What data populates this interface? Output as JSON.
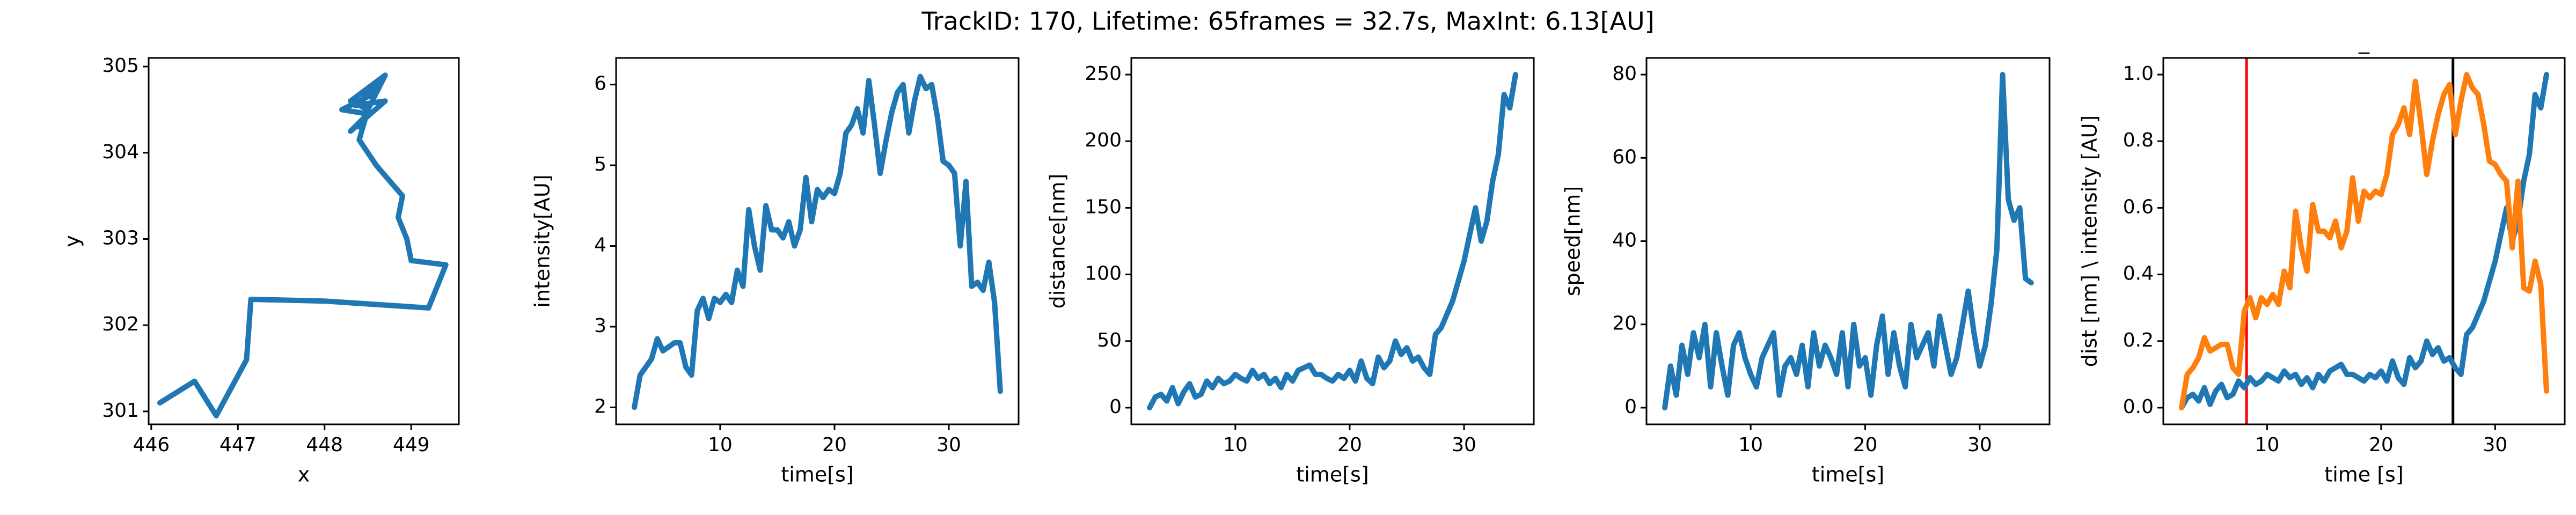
{
  "title": "TrackID: 170, Lifetime: 65frames = 32.7s, MaxInt: 6.13[AU]",
  "chart_data": [
    {
      "type": "line",
      "xlabel": "x",
      "ylabel": "y",
      "color": "#1f77b4",
      "x": [
        446.1,
        446.5,
        446.75,
        447.1,
        447.15,
        448.0,
        449.2,
        449.4,
        449.0,
        448.95,
        448.85,
        448.9,
        448.6,
        448.4,
        448.5,
        448.3,
        448.7,
        448.4,
        448.6,
        448.2,
        448.5,
        448.3,
        448.7,
        448.35,
        448.65
      ],
      "values": [
        301.1,
        301.35,
        300.95,
        301.6,
        302.3,
        302.28,
        302.2,
        302.7,
        302.75,
        303.0,
        303.25,
        303.5,
        303.85,
        304.15,
        304.5,
        304.6,
        304.9,
        304.3,
        304.7,
        304.5,
        304.45,
        304.25,
        304.6,
        304.55,
        304.8
      ],
      "xlim": [
        445.97,
        449.55
      ],
      "ylim": [
        300.85,
        305.1
      ],
      "xticks": [
        446,
        447,
        448,
        449
      ],
      "yticks": [
        301,
        302,
        303,
        304,
        305
      ]
    },
    {
      "type": "line",
      "xlabel": "time[s]",
      "ylabel": "intensity[AU]",
      "color": "#1f77b4",
      "x": [
        2.5,
        3,
        3.5,
        4,
        4.5,
        5,
        5.5,
        6,
        6.5,
        7,
        7.5,
        8,
        8.5,
        9,
        9.5,
        10,
        10.5,
        11,
        11.5,
        12,
        12.5,
        13,
        13.5,
        14,
        14.5,
        15,
        15.5,
        16,
        16.5,
        17,
        17.5,
        18,
        18.5,
        19,
        19.5,
        20,
        20.5,
        21,
        21.5,
        22,
        22.5,
        23,
        23.5,
        24,
        24.5,
        25,
        25.5,
        26,
        26.5,
        27,
        27.5,
        28,
        28.5,
        29,
        29.5,
        30,
        30.5,
        31,
        31.5,
        32,
        32.5,
        33,
        33.5,
        34,
        34.5
      ],
      "values": [
        2.0,
        2.4,
        2.5,
        2.6,
        2.85,
        2.7,
        2.75,
        2.8,
        2.8,
        2.5,
        2.4,
        3.2,
        3.35,
        3.1,
        3.35,
        3.3,
        3.4,
        3.3,
        3.7,
        3.5,
        4.45,
        4.0,
        3.7,
        4.5,
        4.2,
        4.2,
        4.1,
        4.3,
        4.0,
        4.2,
        4.85,
        4.3,
        4.7,
        4.6,
        4.7,
        4.65,
        4.9,
        5.4,
        5.5,
        5.7,
        5.4,
        6.05,
        5.5,
        4.9,
        5.3,
        5.65,
        5.9,
        6.0,
        5.4,
        5.8,
        6.1,
        5.95,
        6.0,
        5.6,
        5.05,
        5.0,
        4.9,
        4.0,
        4.8,
        3.5,
        3.55,
        3.45,
        3.8,
        3.3,
        2.2
      ],
      "xlim": [
        0.9,
        36.1
      ],
      "ylim": [
        1.79,
        6.33
      ],
      "xticks": [
        10,
        20,
        30
      ],
      "yticks": [
        2,
        3,
        4,
        5,
        6
      ]
    },
    {
      "type": "line",
      "xlabel": "time[s]",
      "ylabel": "distance[nm]",
      "color": "#1f77b4",
      "x": [
        2.5,
        3,
        3.5,
        4,
        4.5,
        5,
        5.5,
        6,
        6.5,
        7,
        7.5,
        8,
        8.5,
        9,
        9.5,
        10,
        10.5,
        11,
        11.5,
        12,
        12.5,
        13,
        13.5,
        14,
        14.5,
        15,
        15.5,
        16,
        16.5,
        17,
        17.5,
        18,
        18.5,
        19,
        19.5,
        20,
        20.5,
        21,
        21.5,
        22,
        22.5,
        23,
        23.5,
        24,
        24.5,
        25,
        25.5,
        26,
        26.5,
        27,
        27.5,
        28,
        28.5,
        29,
        29.5,
        30,
        30.5,
        31,
        31.5,
        32,
        32.5,
        33,
        33.5,
        34,
        34.5
      ],
      "values": [
        0,
        8,
        10,
        5,
        15,
        3,
        12,
        18,
        8,
        10,
        20,
        15,
        22,
        18,
        20,
        25,
        22,
        20,
        28,
        22,
        25,
        18,
        22,
        15,
        25,
        20,
        28,
        30,
        32,
        25,
        25,
        22,
        20,
        25,
        22,
        28,
        20,
        35,
        22,
        18,
        38,
        30,
        35,
        50,
        40,
        45,
        35,
        38,
        30,
        25,
        55,
        60,
        70,
        80,
        95,
        110,
        130,
        150,
        125,
        140,
        170,
        190,
        235,
        225,
        250
      ],
      "xlim": [
        0.9,
        36.1
      ],
      "ylim": [
        -12.5,
        262.5
      ],
      "xticks": [
        10,
        20,
        30
      ],
      "yticks": [
        0,
        50,
        100,
        150,
        200,
        250
      ]
    },
    {
      "type": "line",
      "xlabel": "time[s]",
      "ylabel": "speed[nm]",
      "color": "#1f77b4",
      "x": [
        2.5,
        3,
        3.5,
        4,
        4.5,
        5,
        5.5,
        6,
        6.5,
        7,
        7.5,
        8,
        8.5,
        9,
        9.5,
        10,
        10.5,
        11,
        11.5,
        12,
        12.5,
        13,
        13.5,
        14,
        14.5,
        15,
        15.5,
        16,
        16.5,
        17,
        17.5,
        18,
        18.5,
        19,
        19.5,
        20,
        20.5,
        21,
        21.5,
        22,
        22.5,
        23,
        23.5,
        24,
        24.5,
        25,
        25.5,
        26,
        26.5,
        27,
        27.5,
        28,
        28.5,
        29,
        29.5,
        30,
        30.5,
        31,
        31.5,
        32,
        32.5,
        33,
        33.5,
        34,
        34.5
      ],
      "values": [
        0,
        10,
        3,
        15,
        8,
        18,
        12,
        20,
        5,
        18,
        10,
        3,
        15,
        18,
        12,
        8,
        5,
        12,
        15,
        18,
        3,
        10,
        12,
        8,
        15,
        5,
        18,
        10,
        15,
        12,
        8,
        18,
        5,
        20,
        10,
        12,
        3,
        15,
        22,
        8,
        18,
        10,
        5,
        20,
        12,
        15,
        18,
        10,
        22,
        15,
        8,
        12,
        20,
        28,
        18,
        10,
        15,
        25,
        38,
        80,
        50,
        45,
        48,
        31,
        30
      ],
      "xlim": [
        0.9,
        36.1
      ],
      "ylim": [
        -4,
        84
      ],
      "xticks": [
        10,
        20,
        30
      ],
      "yticks": [
        0,
        20,
        40,
        60,
        80
      ]
    },
    {
      "type": "line",
      "title": "_",
      "xlabel": "time [s]",
      "ylabel": "dist [nm] \\ intensity [AU]",
      "x": [
        2.5,
        3,
        3.5,
        4,
        4.5,
        5,
        5.5,
        6,
        6.5,
        7,
        7.5,
        8,
        8.5,
        9,
        9.5,
        10,
        10.5,
        11,
        11.5,
        12,
        12.5,
        13,
        13.5,
        14,
        14.5,
        15,
        15.5,
        16,
        16.5,
        17,
        17.5,
        18,
        18.5,
        19,
        19.5,
        20,
        20.5,
        21,
        21.5,
        22,
        22.5,
        23,
        23.5,
        24,
        24.5,
        25,
        25.5,
        26,
        26.5,
        27,
        27.5,
        28,
        28.5,
        29,
        29.5,
        30,
        30.5,
        31,
        31.5,
        32,
        32.5,
        33,
        33.5,
        34,
        34.5
      ],
      "series": [
        {
          "color": "#1f77b4",
          "values": [
            0,
            0.03,
            0.04,
            0.02,
            0.06,
            0.01,
            0.05,
            0.07,
            0.03,
            0.04,
            0.08,
            0.06,
            0.09,
            0.07,
            0.08,
            0.1,
            0.09,
            0.08,
            0.11,
            0.09,
            0.1,
            0.07,
            0.09,
            0.06,
            0.1,
            0.08,
            0.11,
            0.12,
            0.13,
            0.1,
            0.1,
            0.09,
            0.08,
            0.1,
            0.09,
            0.11,
            0.08,
            0.14,
            0.09,
            0.07,
            0.15,
            0.12,
            0.14,
            0.2,
            0.16,
            0.18,
            0.14,
            0.15,
            0.12,
            0.1,
            0.22,
            0.24,
            0.28,
            0.32,
            0.38,
            0.44,
            0.52,
            0.6,
            0.5,
            0.56,
            0.68,
            0.76,
            0.94,
            0.9,
            1.0
          ]
        },
        {
          "color": "#ff7f0e",
          "values": [
            0,
            0.1,
            0.12,
            0.15,
            0.21,
            0.17,
            0.18,
            0.19,
            0.19,
            0.12,
            0.1,
            0.29,
            0.33,
            0.27,
            0.33,
            0.31,
            0.34,
            0.31,
            0.41,
            0.36,
            0.59,
            0.48,
            0.41,
            0.61,
            0.53,
            0.53,
            0.51,
            0.56,
            0.48,
            0.53,
            0.69,
            0.56,
            0.65,
            0.63,
            0.65,
            0.64,
            0.7,
            0.82,
            0.85,
            0.9,
            0.82,
            0.98,
            0.85,
            0.7,
            0.8,
            0.88,
            0.94,
            0.97,
            0.82,
            0.92,
            1.0,
            0.96,
            0.94,
            0.85,
            0.74,
            0.73,
            0.7,
            0.68,
            0.48,
            0.68,
            0.36,
            0.35,
            0.44,
            0.37,
            0.05
          ]
        }
      ],
      "vlines": [
        {
          "value": 8.2,
          "color": "#ff0000"
        },
        {
          "value": 26.3,
          "color": "#000000"
        }
      ],
      "xlim": [
        0.9,
        36.1
      ],
      "ylim": [
        -0.05,
        1.05
      ],
      "xticks": [
        10,
        20,
        30
      ],
      "yticks": [
        {
          "value": 0,
          "label": "0.0"
        },
        0.2,
        0.4,
        0.6,
        0.8,
        {
          "value": 1,
          "label": "1.0"
        }
      ]
    }
  ]
}
